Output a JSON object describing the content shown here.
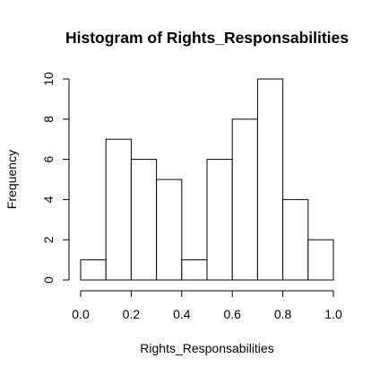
{
  "chart_data": {
    "type": "bar",
    "title": "Histogram of Rights_Responsabilities",
    "xlabel": "Rights_Responsabilities",
    "ylabel": "Frequency",
    "bins": [
      {
        "from": 0.0,
        "to": 0.1,
        "count": 1
      },
      {
        "from": 0.1,
        "to": 0.2,
        "count": 7
      },
      {
        "from": 0.2,
        "to": 0.3,
        "count": 6
      },
      {
        "from": 0.3,
        "to": 0.4,
        "count": 5
      },
      {
        "from": 0.4,
        "to": 0.5,
        "count": 1
      },
      {
        "from": 0.5,
        "to": 0.6,
        "count": 6
      },
      {
        "from": 0.6,
        "to": 0.7,
        "count": 8
      },
      {
        "from": 0.7,
        "to": 0.8,
        "count": 10
      },
      {
        "from": 0.8,
        "to": 0.9,
        "count": 4
      },
      {
        "from": 0.9,
        "to": 1.0,
        "count": 2
      }
    ],
    "xlim": [
      0.0,
      1.0
    ],
    "ylim": [
      0,
      10
    ],
    "x_ticks": [
      "0.0",
      "0.2",
      "0.4",
      "0.6",
      "0.8",
      "1.0"
    ],
    "y_ticks": [
      "0",
      "2",
      "4",
      "6",
      "8",
      "10"
    ],
    "grid": false,
    "bar_fill": "#ffffff",
    "bar_stroke": "#000000"
  }
}
